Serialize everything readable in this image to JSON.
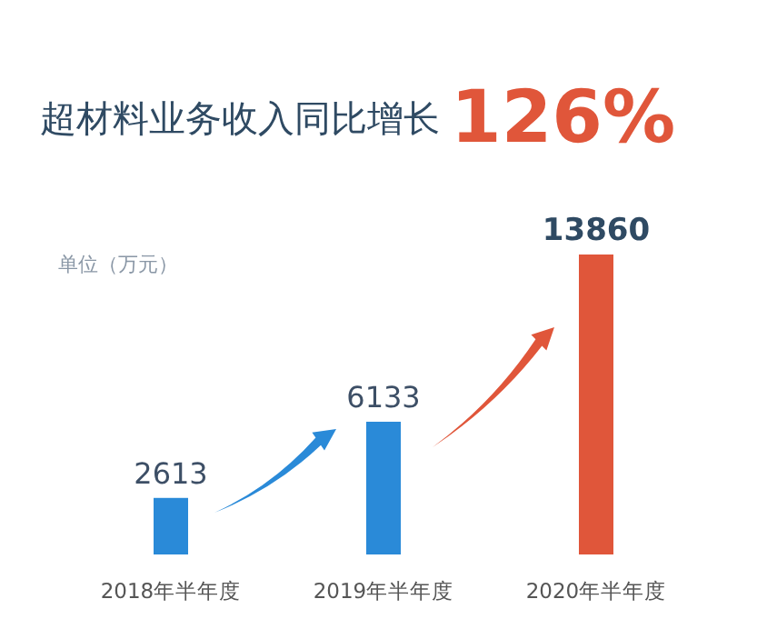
{
  "chart_data": {
    "type": "bar",
    "title": "超材料业务收入同比增长",
    "ylabel": "单位（万元）",
    "annotations": [
      "126%"
    ],
    "categories": [
      "2018年半年度",
      "2019年半年度",
      "2020年半年度"
    ],
    "values": [
      2613,
      6133,
      13860
    ],
    "colors": [
      "#2a8ad8",
      "#2a8ad8",
      "#e0563a"
    ],
    "data_labels": true
  }
}
